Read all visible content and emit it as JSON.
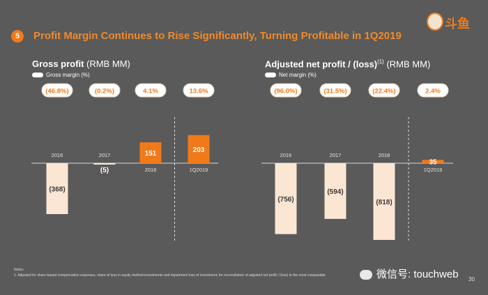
{
  "header": {
    "section_number": "5",
    "title": "Profit Margin Continues to Rise Significantly, Turning Profitable in 1Q2019",
    "logo_text": "斗鱼"
  },
  "colors": {
    "background": "#5a5a5a",
    "accent": "#f07a1a",
    "negative_bar": "#fbe6d3",
    "pill_fill": "#ffffff",
    "pill_text": "#f07a1a"
  },
  "chart_data": [
    {
      "type": "bar",
      "title": "Gross profit",
      "unit": "(RMB MM)",
      "legend_label": "Gross margin (%)",
      "categories": [
        "2016",
        "2017",
        "2018",
        "1Q2019"
      ],
      "values": [
        -368,
        -5,
        151,
        203
      ],
      "value_labels": [
        "(368)",
        "(5)",
        "151",
        "203"
      ],
      "margins": [
        "(46.8%)",
        "(0.2%)",
        "4.1%",
        "13.6%"
      ],
      "divider_before_last": true
    },
    {
      "type": "bar",
      "title": "Adjusted net profit / (loss)",
      "title_superscript": "(1)",
      "unit": "(RMB MM)",
      "legend_label": "Net margin (%)",
      "categories": [
        "2016",
        "2017",
        "2018",
        "1Q2019"
      ],
      "values": [
        -756,
        -594,
        -818,
        35
      ],
      "value_labels": [
        "(756)",
        "(594)",
        "(818)",
        "35"
      ],
      "margins": [
        "(96.0%)",
        "(31.5%)",
        "(22.4%)",
        "2.4%"
      ],
      "divider_before_last": true
    }
  ],
  "footer": {
    "notes_heading": "Notes:",
    "note_1": "1.      Adjusted for share-based compensation expenses, share of loss in equity method investments and impairment loss of investment; for reconciliation of adjusted net profit / (loss) to the most comparable",
    "watermark": "微信号: touchweb",
    "page_number": "30"
  }
}
